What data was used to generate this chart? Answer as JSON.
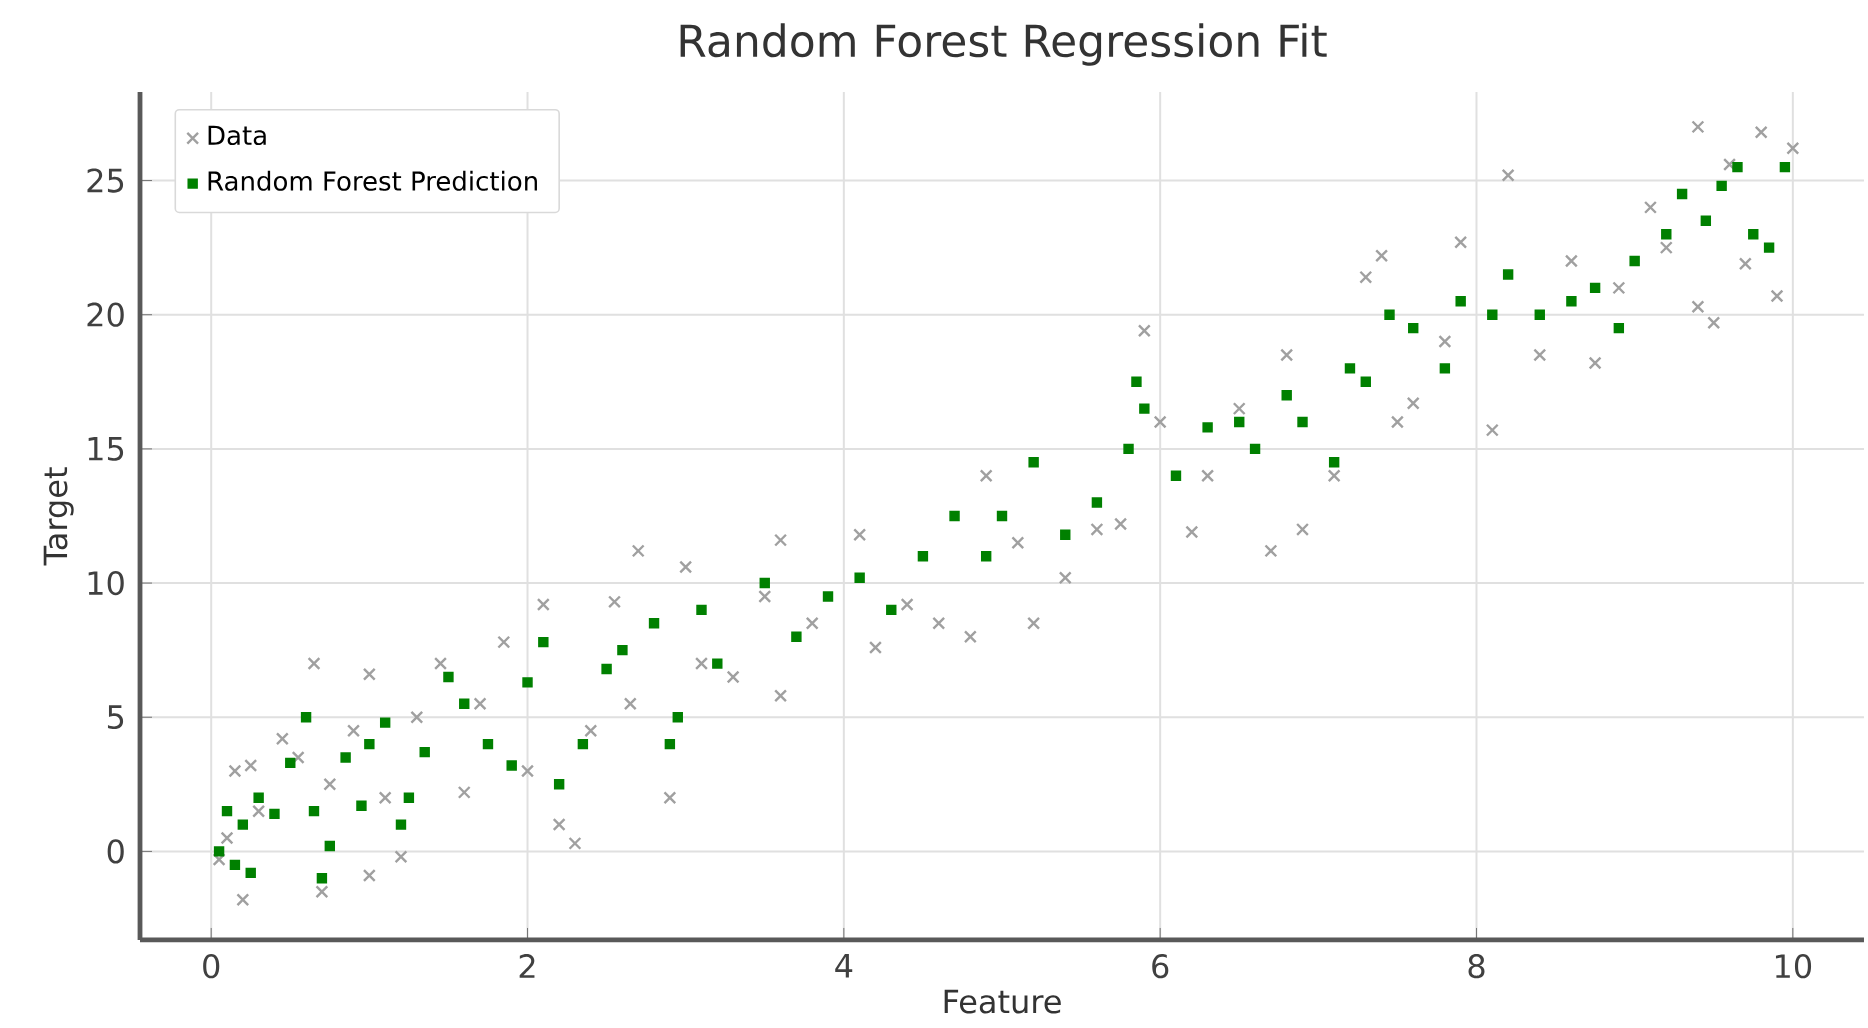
{
  "chart_data": {
    "type": "scatter",
    "title": "Random Forest Regression Fit",
    "xlabel": "Feature",
    "ylabel": "Target",
    "xlim": [
      -0.45,
      10.45
    ],
    "ylim": [
      -3.3,
      28.3
    ],
    "xticks": [
      0,
      2,
      4,
      6,
      8,
      10
    ],
    "yticks": [
      0,
      5,
      10,
      15,
      20,
      25
    ],
    "grid": true,
    "legend": "top left",
    "series": [
      {
        "name": "Data",
        "color": "#a0a0a0",
        "marker": "cross",
        "x": [
          0.05,
          0.1,
          0.15,
          0.2,
          0.25,
          0.3,
          0.45,
          0.55,
          0.65,
          0.7,
          0.75,
          0.9,
          1.0,
          1.0,
          1.1,
          1.2,
          1.3,
          1.45,
          1.6,
          1.7,
          1.85,
          2.0,
          2.1,
          2.2,
          2.3,
          2.4,
          2.55,
          2.65,
          2.7,
          2.9,
          3.0,
          3.1,
          3.3,
          3.5,
          3.6,
          3.6,
          3.8,
          4.1,
          4.2,
          4.4,
          4.6,
          4.8,
          4.9,
          5.1,
          5.2,
          5.4,
          5.6,
          5.75,
          5.9,
          6.0,
          6.2,
          6.3,
          6.5,
          6.7,
          6.8,
          6.9,
          7.1,
          7.3,
          7.4,
          7.5,
          7.6,
          7.8,
          7.9,
          8.1,
          8.2,
          8.4,
          8.6,
          8.75,
          8.9,
          9.1,
          9.2,
          9.4,
          9.4,
          9.5,
          9.6,
          9.7,
          9.8,
          9.9,
          10.0
        ],
        "values": [
          -0.3,
          0.5,
          3.0,
          -1.8,
          3.2,
          1.5,
          4.2,
          3.5,
          7.0,
          -1.5,
          2.5,
          4.5,
          -0.9,
          6.6,
          2.0,
          -0.2,
          5.0,
          7.0,
          2.2,
          5.5,
          7.8,
          3.0,
          9.2,
          1.0,
          0.3,
          4.5,
          9.3,
          5.5,
          11.2,
          2.0,
          10.6,
          7.0,
          6.5,
          9.5,
          11.6,
          5.8,
          8.5,
          11.8,
          7.6,
          9.2,
          8.5,
          8.0,
          14.0,
          11.5,
          8.5,
          10.2,
          12.0,
          12.2,
          19.4,
          16.0,
          11.9,
          14.0,
          16.5,
          11.2,
          18.5,
          12.0,
          14.0,
          21.4,
          22.2,
          16.0,
          16.7,
          19.0,
          22.7,
          15.7,
          25.2,
          18.5,
          22.0,
          18.2,
          21.0,
          24.0,
          22.5,
          27.0,
          20.3,
          19.7,
          25.6,
          21.9,
          26.8,
          20.7,
          26.2
        ]
      },
      {
        "name": "Random Forest Prediction",
        "color": "#008000",
        "marker": "square",
        "x": [
          0.05,
          0.1,
          0.15,
          0.2,
          0.25,
          0.3,
          0.4,
          0.5,
          0.6,
          0.65,
          0.7,
          0.75,
          0.85,
          0.95,
          1.0,
          1.1,
          1.2,
          1.25,
          1.35,
          1.5,
          1.6,
          1.75,
          1.9,
          2.0,
          2.1,
          2.2,
          2.35,
          2.5,
          2.6,
          2.8,
          2.9,
          2.95,
          3.1,
          3.2,
          3.5,
          3.7,
          3.9,
          4.1,
          4.3,
          4.5,
          4.7,
          4.9,
          5.0,
          5.2,
          5.4,
          5.6,
          5.8,
          5.85,
          5.9,
          6.1,
          6.3,
          6.5,
          6.6,
          6.8,
          6.9,
          7.1,
          7.2,
          7.3,
          7.45,
          7.6,
          7.8,
          7.9,
          8.1,
          8.2,
          8.4,
          8.6,
          8.75,
          8.9,
          9.0,
          9.2,
          9.3,
          9.45,
          9.55,
          9.65,
          9.75,
          9.85,
          9.95
        ],
        "values": [
          0.0,
          1.5,
          -0.5,
          1.0,
          -0.8,
          2.0,
          1.4,
          3.3,
          5.0,
          1.5,
          -1.0,
          0.2,
          3.5,
          1.7,
          4.0,
          4.8,
          1.0,
          2.0,
          3.7,
          6.5,
          5.5,
          4.0,
          3.2,
          6.3,
          7.8,
          2.5,
          4.0,
          6.8,
          7.5,
          8.5,
          4.0,
          5.0,
          9.0,
          7.0,
          10.0,
          8.0,
          9.5,
          10.2,
          9.0,
          11.0,
          12.5,
          11.0,
          12.5,
          14.5,
          11.8,
          13.0,
          15.0,
          17.5,
          16.5,
          14.0,
          15.8,
          16.0,
          15.0,
          17.0,
          16.0,
          14.5,
          18.0,
          17.5,
          20.0,
          19.5,
          18.0,
          20.5,
          20.0,
          21.5,
          20.0,
          20.5,
          21.0,
          19.5,
          22.0,
          23.0,
          24.5,
          23.5,
          24.8,
          25.5,
          23.0,
          22.5,
          25.5
        ]
      }
    ]
  }
}
